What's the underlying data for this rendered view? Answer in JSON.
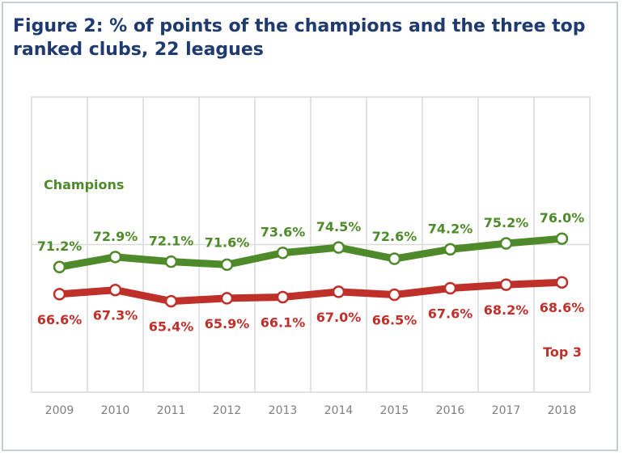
{
  "chart_data": {
    "type": "line",
    "title": "Figure 2: % of points of the champions and the three top ranked clubs, 22 leagues",
    "x": [
      "2009",
      "2010",
      "2011",
      "2012",
      "2013",
      "2014",
      "2015",
      "2016",
      "2017",
      "2018"
    ],
    "series": [
      {
        "name": "Champions",
        "color": "#4e8a2a",
        "values": [
          71.2,
          72.9,
          72.1,
          71.6,
          73.6,
          74.5,
          72.6,
          74.2,
          75.2,
          76.0
        ],
        "labels": [
          "71.2%",
          "72.9%",
          "72.1%",
          "71.6%",
          "73.6%",
          "74.5%",
          "72.6%",
          "74.2%",
          "75.2%",
          "76.0%"
        ]
      },
      {
        "name": "Top 3",
        "color": "#c0302a",
        "values": [
          66.6,
          67.3,
          65.4,
          65.9,
          66.1,
          67.0,
          66.5,
          67.6,
          68.2,
          68.6
        ],
        "labels": [
          "66.6%",
          "67.3%",
          "65.4%",
          "65.9%",
          "66.1%",
          "67.0%",
          "66.5%",
          "67.6%",
          "68.2%",
          "68.6%"
        ]
      }
    ],
    "ylim": [
      50,
      100
    ],
    "grid": true,
    "legend": "inline-labels"
  }
}
